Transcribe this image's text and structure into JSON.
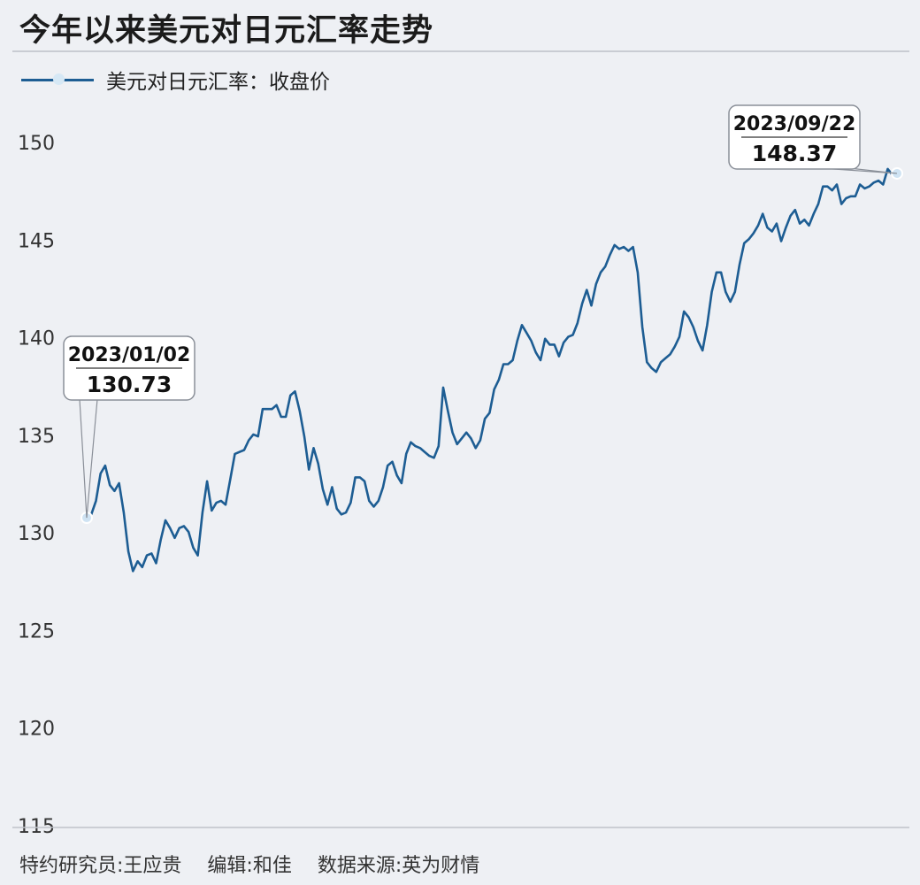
{
  "header": {
    "title": "今年以来美元对日元汇率走势"
  },
  "legend": {
    "label": "美元对日元汇率：收盘价"
  },
  "footer": {
    "researcher": "特约研究员:王应贵",
    "editor": "编辑:和佳",
    "source": "数据来源:英为财情"
  },
  "colors": {
    "line": "#1d5d93",
    "background": "#eef0f4"
  },
  "chart_data": {
    "type": "line",
    "ylim": [
      115,
      150
    ],
    "yticks": [
      150,
      145,
      140,
      135,
      130,
      125,
      120,
      115
    ],
    "legend_position": "top-left",
    "grid": false,
    "series": [
      {
        "name": "美元对日元汇率：收盘价",
        "values": [
          130.73,
          130.9,
          131.6,
          133.0,
          133.4,
          132.4,
          132.1,
          132.5,
          131.0,
          129.0,
          128.0,
          128.5,
          128.2,
          128.8,
          128.9,
          128.4,
          129.6,
          130.6,
          130.2,
          129.7,
          130.2,
          130.3,
          130.0,
          129.2,
          128.8,
          131.0,
          132.6,
          131.1,
          131.5,
          131.6,
          131.4,
          132.7,
          134.0,
          134.1,
          134.2,
          134.7,
          135.0,
          134.9,
          136.3,
          136.3,
          136.3,
          136.5,
          135.9,
          135.9,
          137.0,
          137.2,
          136.2,
          134.9,
          133.2,
          134.3,
          133.5,
          132.2,
          131.4,
          132.3,
          131.2,
          130.9,
          131.0,
          131.5,
          132.8,
          132.8,
          132.6,
          131.6,
          131.3,
          131.6,
          132.3,
          133.4,
          133.6,
          132.9,
          132.5,
          134.0,
          134.6,
          134.4,
          134.3,
          134.1,
          133.9,
          133.8,
          134.4,
          137.4,
          136.2,
          135.1,
          134.5,
          134.8,
          135.1,
          134.8,
          134.3,
          134.7,
          135.8,
          136.1,
          137.3,
          137.8,
          138.6,
          138.6,
          138.8,
          139.8,
          140.6,
          140.2,
          139.8,
          139.2,
          138.8,
          139.9,
          139.6,
          139.6,
          139.0,
          139.7,
          140.0,
          140.1,
          140.7,
          141.7,
          142.4,
          141.6,
          142.7,
          143.3,
          143.6,
          144.2,
          144.7,
          144.5,
          144.6,
          144.4,
          144.6,
          143.3,
          140.5,
          138.7,
          138.4,
          138.2,
          138.7,
          138.9,
          139.1,
          139.5,
          140.0,
          141.3,
          141.0,
          140.5,
          139.8,
          139.3,
          140.6,
          142.3,
          143.3,
          143.3,
          142.3,
          141.8,
          142.3,
          143.7,
          144.8,
          145.0,
          145.3,
          145.7,
          146.3,
          145.6,
          145.4,
          145.8,
          144.9,
          145.6,
          146.2,
          146.5,
          145.8,
          146.0,
          145.7,
          146.3,
          146.8,
          147.7,
          147.7,
          147.5,
          147.8,
          146.8,
          147.1,
          147.2,
          147.2,
          147.8,
          147.6,
          147.7,
          147.9,
          148.0,
          147.8,
          148.6,
          148.3,
          148.37
        ]
      }
    ],
    "annotations": [
      {
        "date": "2023/01/02",
        "value": "130.73",
        "series_index": 0,
        "anchor": "start"
      },
      {
        "date": "2023/09/22",
        "value": "148.37",
        "series_index": 0,
        "anchor": "end"
      }
    ]
  }
}
